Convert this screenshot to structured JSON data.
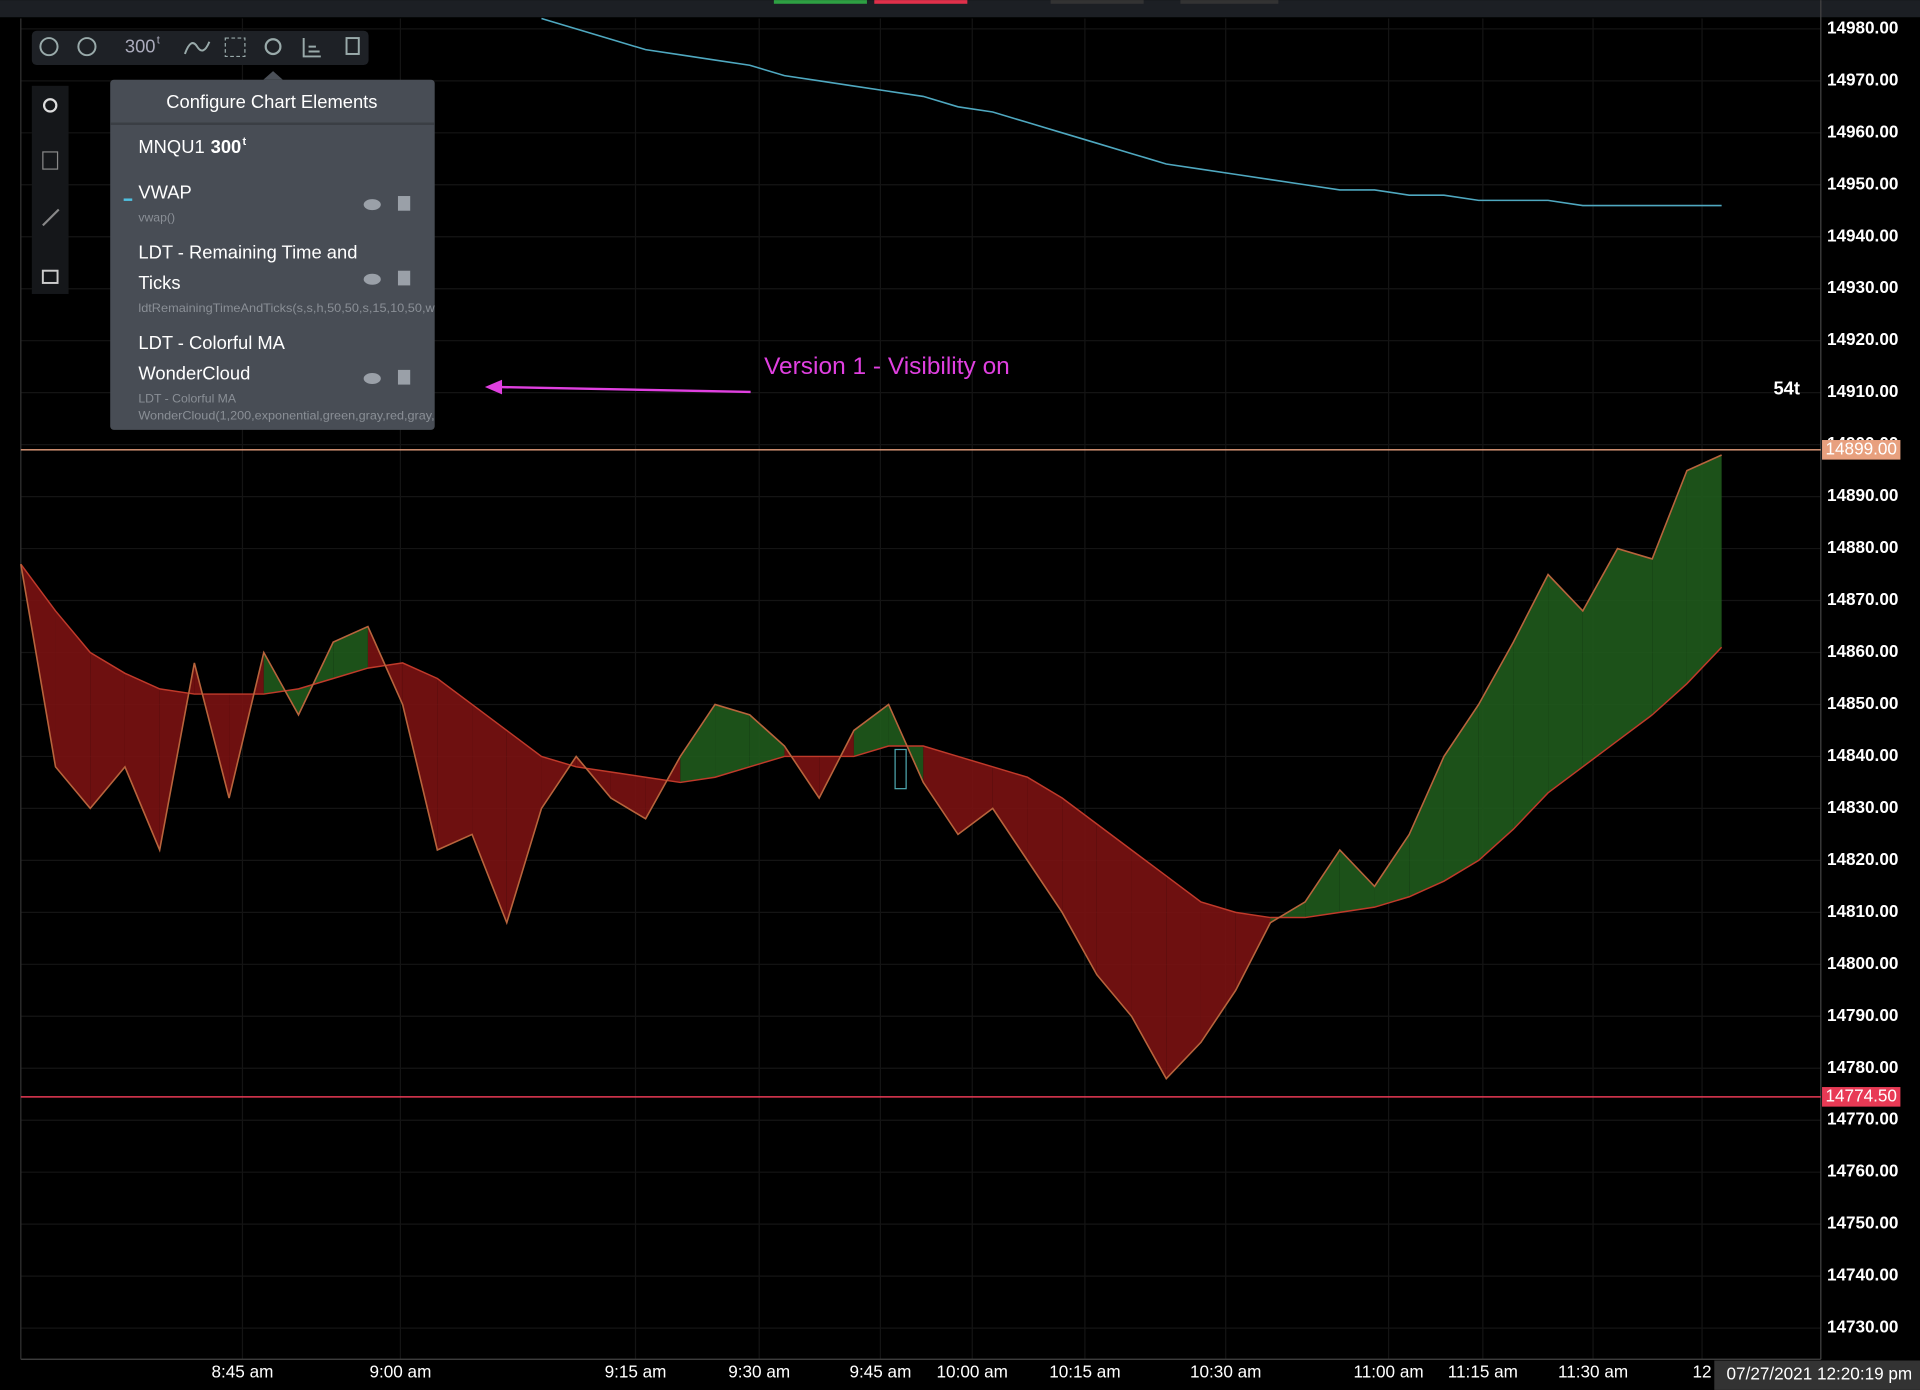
{
  "toolbar": {
    "interval": "300",
    "interval_unit": "t"
  },
  "panel": {
    "title": "Configure Chart Elements",
    "symbol": "MNQU1",
    "interval": "300",
    "interval_unit": "t",
    "items": [
      {
        "name": "VWAP",
        "detail": "vwap()"
      },
      {
        "name_line1": "LDT - Remaining Time and",
        "name_line2": "Ticks",
        "detail": "ldtRemainingTimeAndTicks(s,s,h,50,50,s,15,10,50,w"
      },
      {
        "name_line1": "LDT - Colorful MA",
        "name_line2": "WonderCloud",
        "detail_line1": "LDT - Colorful MA",
        "detail_line2": "WonderCloud(1,200,exponential,green,gray,red,gray,"
      }
    ]
  },
  "annotation": "Version 1 - Visibility on",
  "tick_counter": "54t",
  "timestamp": "07/27/2021 12:20:19 pm",
  "chart": {
    "type": "line",
    "ylim": [
      14724,
      14982
    ],
    "yticks": [
      {
        "value": 14730,
        "label": "14730.00"
      },
      {
        "value": 14740,
        "label": "14740.00"
      },
      {
        "value": 14750,
        "label": "14750.00"
      },
      {
        "value": 14760,
        "label": "14760.00"
      },
      {
        "value": 14770,
        "label": "14770.00"
      },
      {
        "value": 14780,
        "label": "14780.00"
      },
      {
        "value": 14790,
        "label": "14790.00"
      },
      {
        "value": 14800,
        "label": "14800.00"
      },
      {
        "value": 14810,
        "label": "14810.00"
      },
      {
        "value": 14820,
        "label": "14820.00"
      },
      {
        "value": 14830,
        "label": "14830.00"
      },
      {
        "value": 14840,
        "label": "14840.00"
      },
      {
        "value": 14850,
        "label": "14850.00"
      },
      {
        "value": 14860,
        "label": "14860.00"
      },
      {
        "value": 14870,
        "label": "14870.00"
      },
      {
        "value": 14880,
        "label": "14880.00"
      },
      {
        "value": 14890,
        "label": "14890.00"
      },
      {
        "value": 14900,
        "label": "14900.00"
      },
      {
        "value": 14910,
        "label": "14910.00"
      },
      {
        "value": 14920,
        "label": "14920.00"
      },
      {
        "value": 14930,
        "label": "14930.00"
      },
      {
        "value": 14940,
        "label": "14940.00"
      },
      {
        "value": 14950,
        "label": "14950.00"
      },
      {
        "value": 14960,
        "label": "14960.00"
      },
      {
        "value": 14970,
        "label": "14970.00"
      },
      {
        "value": 14980,
        "label": "14980.00"
      }
    ],
    "x_labels": [
      "8:45 am",
      "9:00 am",
      "9:15 am",
      "9:30 am",
      "9:45 am",
      "10:00 am",
      "10:15 am",
      "10:30 am",
      "11:00 am",
      "11:15 am",
      "11:30 am",
      "12"
    ],
    "price": [
      14877,
      14838,
      14830,
      14838,
      14822,
      14858,
      14832,
      14860,
      14848,
      14862,
      14865,
      14850,
      14822,
      14825,
      14808,
      14830,
      14840,
      14832,
      14828,
      14840,
      14850,
      14848,
      14842,
      14832,
      14845,
      14850,
      14835,
      14825,
      14830,
      14820,
      14810,
      14798,
      14790,
      14778,
      14785,
      14795,
      14808,
      14812,
      14822,
      14815,
      14825,
      14840,
      14850,
      14862,
      14875,
      14868,
      14880,
      14878,
      14895,
      14898
    ],
    "cloud_ma": [
      14877,
      14868,
      14860,
      14856,
      14853,
      14852,
      14852,
      14852,
      14853,
      14855,
      14857,
      14858,
      14855,
      14850,
      14845,
      14840,
      14838,
      14837,
      14836,
      14835,
      14836,
      14838,
      14840,
      14840,
      14840,
      14842,
      14842,
      14840,
      14838,
      14836,
      14832,
      14827,
      14822,
      14817,
      14812,
      14810,
      14809,
      14809,
      14810,
      14811,
      14813,
      14816,
      14820,
      14826,
      14833,
      14838,
      14843,
      14848,
      14854,
      14861
    ],
    "vwap": [
      null,
      null,
      null,
      null,
      null,
      null,
      null,
      null,
      null,
      null,
      null,
      null,
      null,
      null,
      null,
      14982,
      14980,
      14978,
      14976,
      14975,
      14974,
      14973,
      14971,
      14970,
      14969,
      14968,
      14967,
      14965,
      14964,
      14962,
      14960,
      14958,
      14956,
      14954,
      14953,
      14952,
      14951,
      14950,
      14949,
      14949,
      14948,
      14948,
      14947,
      14947,
      14947,
      14946,
      14946,
      14946,
      14946,
      14946
    ],
    "colors": {
      "up": "#1f5a1c",
      "down": "#7a1212",
      "edge": "#b8643c",
      "ma": "#c03a2a",
      "vwap": "#4fa8c0"
    },
    "price_lines": [
      {
        "value": 14899,
        "label": "14899.00",
        "color": "#e8a07e"
      },
      {
        "value": 14774.5,
        "label": "14774.50",
        "color": "#e83a55"
      }
    ]
  }
}
